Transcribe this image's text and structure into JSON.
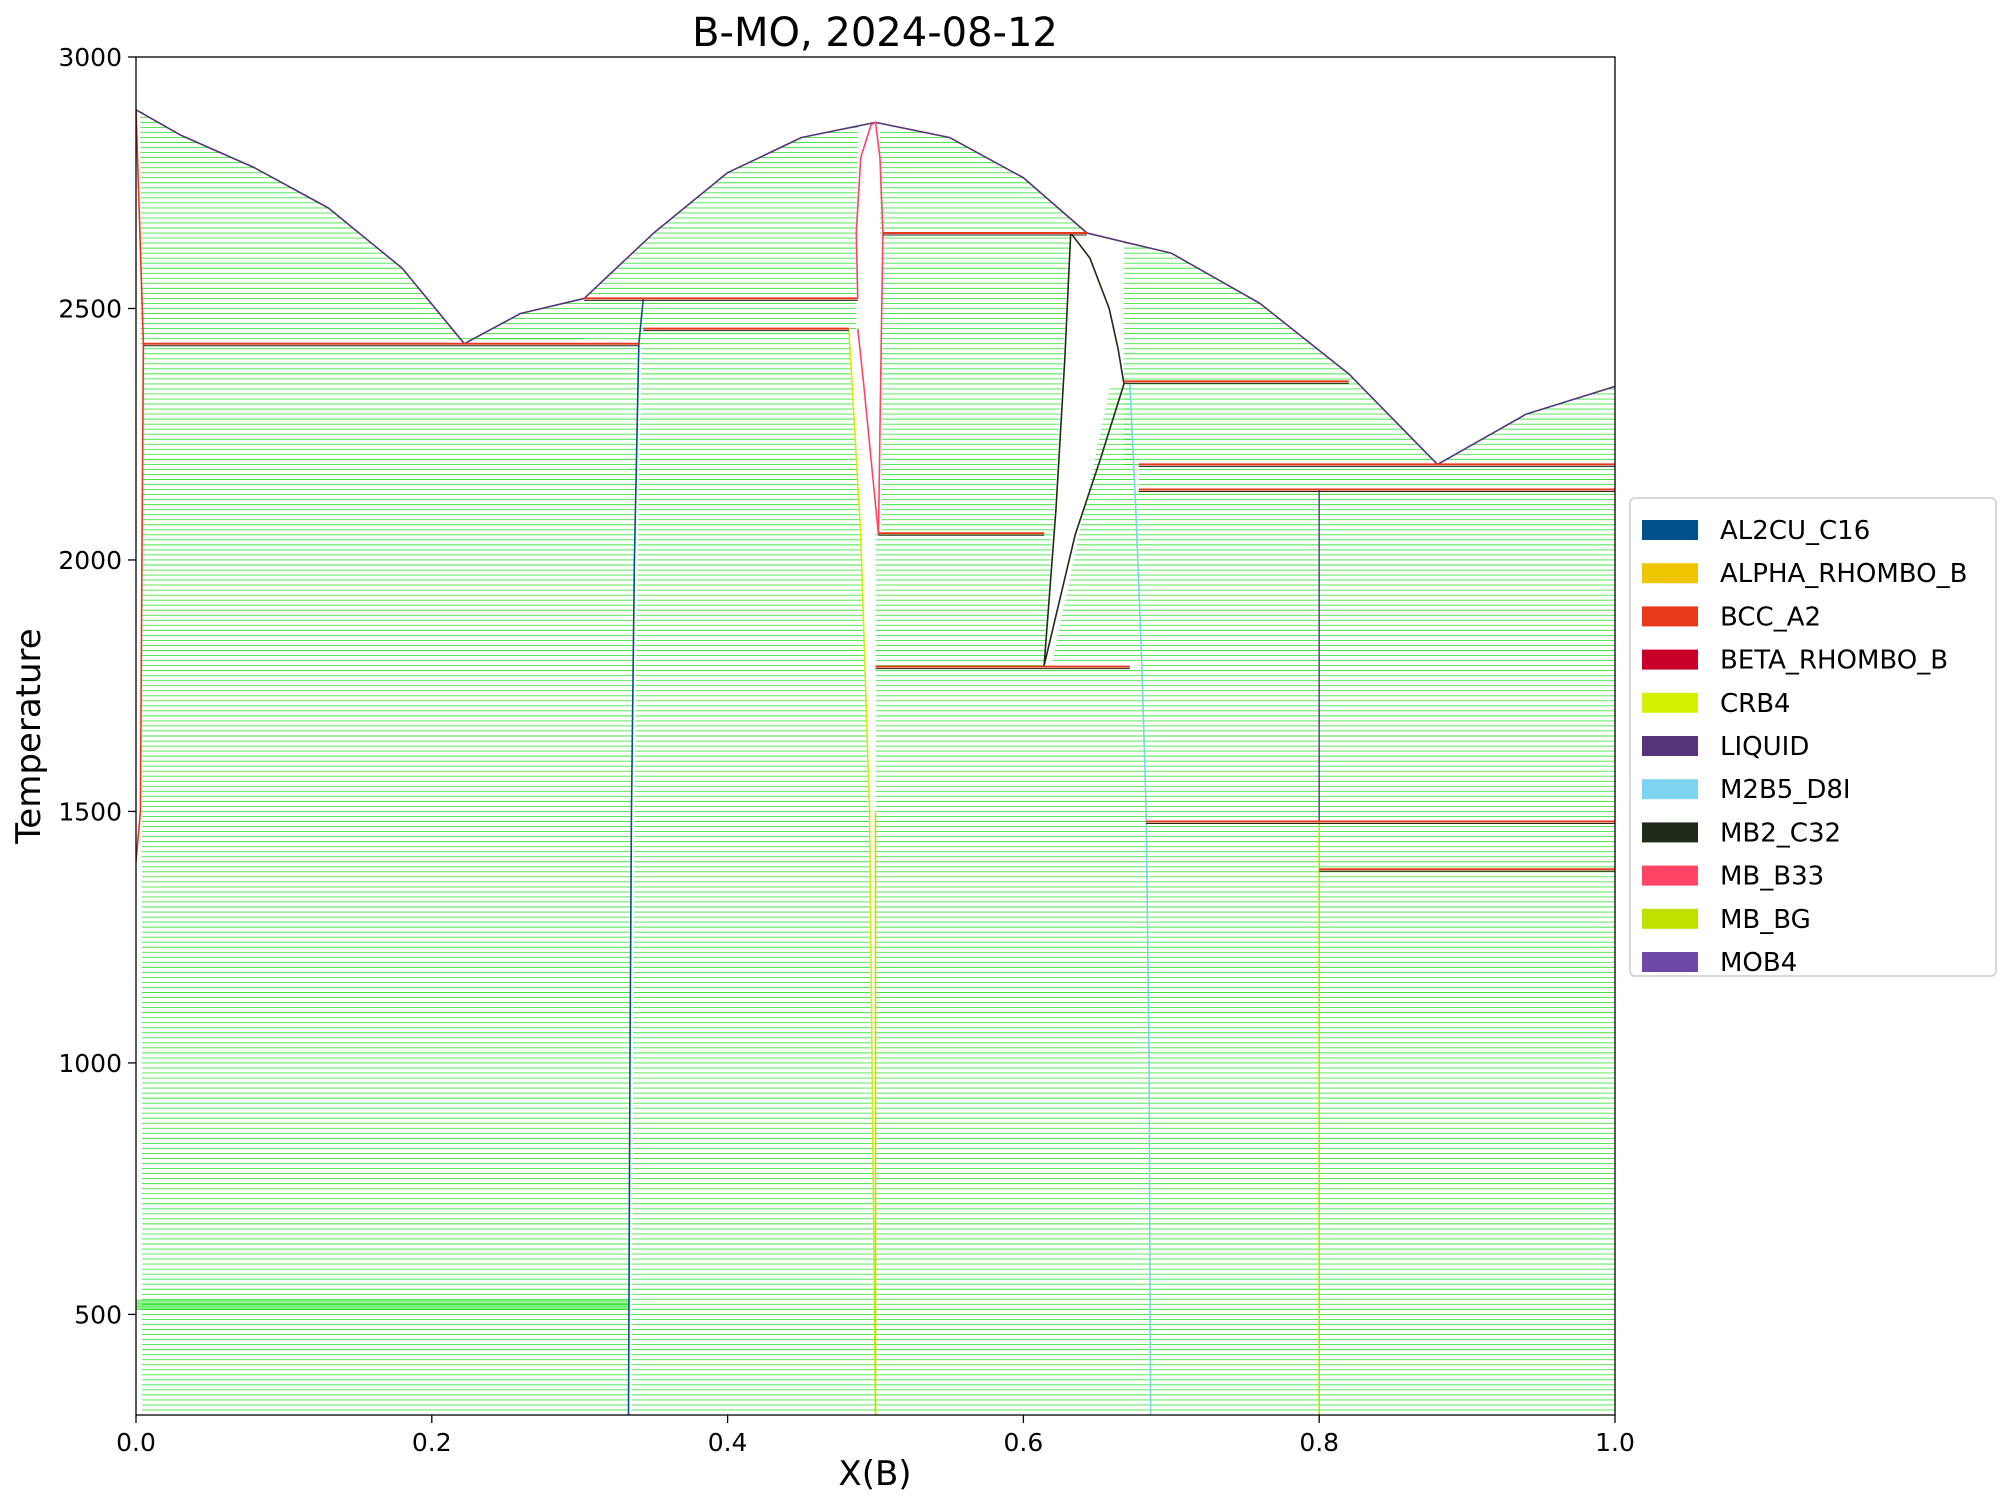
{
  "chart_data": {
    "type": "line",
    "title": "B-MO, 2024-08-12",
    "xlabel": "X(B)",
    "ylabel": "Temperature",
    "xlim": [
      0.0,
      1.0
    ],
    "ylim": [
      300,
      3000
    ],
    "xticks": [
      0.0,
      0.2,
      0.4,
      0.6,
      0.8,
      1.0
    ],
    "xtick_labels": [
      "0.0",
      "0.2",
      "0.4",
      "0.6",
      "0.8",
      "1.0"
    ],
    "yticks": [
      500,
      1000,
      1500,
      2000,
      2500,
      3000
    ],
    "ytick_labels": [
      "500",
      "1000",
      "1500",
      "2000",
      "2500",
      "3000"
    ],
    "grid": false,
    "legend_position": "right",
    "tieline_color": "#00dd00",
    "legend": [
      {
        "name": "AL2CU_C16",
        "color": "#00518c"
      },
      {
        "name": "ALPHA_RHOMBO_B",
        "color": "#f0c600"
      },
      {
        "name": "BCC_A2",
        "color": "#e8381a"
      },
      {
        "name": "BETA_RHOMBO_B",
        "color": "#c8002a"
      },
      {
        "name": "CRB4",
        "color": "#d2f000"
      },
      {
        "name": "LIQUID",
        "color": "#55347a"
      },
      {
        "name": "M2B5_D8I",
        "color": "#7dd3f0"
      },
      {
        "name": "MB2_C32",
        "color": "#202a18"
      },
      {
        "name": "MB_B33",
        "color": "#ff4466"
      },
      {
        "name": "MB_BG",
        "color": "#c0e000"
      },
      {
        "name": "MOB4",
        "color": "#7048a8"
      }
    ],
    "series": [
      {
        "name": "LIQUID",
        "color": "#55347a",
        "x": [
          0.0,
          0.03,
          0.08,
          0.13,
          0.18,
          0.222,
          0.26,
          0.303
        ],
        "y": [
          2895,
          2845,
          2780,
          2700,
          2580,
          2430,
          2490,
          2520
        ]
      },
      {
        "name": "LIQUID",
        "color": "#55347a",
        "x": [
          0.303,
          0.35,
          0.4,
          0.45,
          0.5,
          0.55,
          0.6,
          0.643
        ],
        "y": [
          2520,
          2650,
          2770,
          2840,
          2870,
          2840,
          2760,
          2650
        ]
      },
      {
        "name": "LIQUID",
        "color": "#55347a",
        "x": [
          0.643,
          0.7,
          0.76,
          0.82,
          0.88,
          0.94,
          1.0
        ],
        "y": [
          2650,
          2610,
          2510,
          2370,
          2190,
          2290,
          2345
        ]
      },
      {
        "name": "BCC_A2",
        "color": "#e8381a",
        "x": [
          0.0,
          0.005,
          0.004,
          0.003,
          0.0
        ],
        "y": [
          2895,
          2430,
          2000,
          1500,
          1400
        ]
      },
      {
        "name": "AL2CU_C16",
        "color": "#00518c",
        "x": [
          0.333,
          0.334,
          0.335,
          0.337,
          0.34,
          0.343
        ],
        "y": [
          300,
          1000,
          1500,
          2000,
          2430,
          2520
        ]
      },
      {
        "name": "CRB4",
        "color": "#d2f000",
        "x": [
          0.482,
          0.49,
          0.496,
          0.5
        ],
        "y": [
          2460,
          2050,
          1500,
          300
        ]
      },
      {
        "name": "MB_BG",
        "color": "#c0e000",
        "x": [
          0.5,
          0.5
        ],
        "y": [
          300,
          1500
        ]
      },
      {
        "name": "MB_B33",
        "color": "#ff4466",
        "x": [
          0.488,
          0.487,
          0.49,
          0.497,
          0.5,
          0.503,
          0.505,
          0.504,
          0.502
        ],
        "y": [
          2520,
          2650,
          2800,
          2865,
          2870,
          2800,
          2650,
          2460,
          2050
        ]
      },
      {
        "name": "MB_B33",
        "color": "#ff4466",
        "x": [
          0.488,
          0.492,
          0.497,
          0.502
        ],
        "y": [
          2460,
          2350,
          2200,
          2050
        ]
      },
      {
        "name": "MB2_C32",
        "color": "#202a18",
        "x": [
          0.614,
          0.622,
          0.628,
          0.632
        ],
        "y": [
          1790,
          2100,
          2400,
          2650
        ]
      },
      {
        "name": "MB2_C32",
        "color": "#202a18",
        "x": [
          0.632,
          0.645,
          0.658,
          0.664,
          0.668
        ],
        "y": [
          2650,
          2600,
          2500,
          2420,
          2350
        ]
      },
      {
        "name": "MB2_C32",
        "color": "#202a18",
        "x": [
          0.614,
          0.635,
          0.652,
          0.668
        ],
        "y": [
          1790,
          2050,
          2200,
          2350
        ]
      },
      {
        "name": "M2B5_D8I",
        "color": "#7dd3f0",
        "x": [
          0.672,
          0.676,
          0.68,
          0.683,
          0.685,
          0.686
        ],
        "y": [
          2350,
          2100,
          1800,
          1500,
          1000,
          300
        ]
      },
      {
        "name": "MOB4",
        "color": "#7048a8",
        "x": [
          0.8,
          0.8
        ],
        "y": [
          1480,
          2140
        ]
      },
      {
        "name": "MB_BG",
        "color": "#c0e000",
        "x": [
          0.8,
          0.8
        ],
        "y": [
          300,
          1480
        ]
      }
    ],
    "invariants": [
      {
        "x1": 0.005,
        "x2": 0.34,
        "y": 2430
      },
      {
        "x1": 0.303,
        "x2": 0.488,
        "y": 2520
      },
      {
        "x1": 0.343,
        "x2": 0.482,
        "y": 2460
      },
      {
        "x1": 0.505,
        "x2": 0.643,
        "y": 2650
      },
      {
        "x1": 0.502,
        "x2": 0.614,
        "y": 2053
      },
      {
        "x1": 0.5,
        "x2": 0.672,
        "y": 1788
      },
      {
        "x1": 0.668,
        "x2": 0.82,
        "y": 2355
      },
      {
        "x1": 0.678,
        "x2": 1.0,
        "y": 2190
      },
      {
        "x1": 0.678,
        "x2": 1.0,
        "y": 2140
      },
      {
        "x1": 0.683,
        "x2": 1.0,
        "y": 1480
      },
      {
        "x1": 0.8,
        "x2": 1.0,
        "y": 1385
      }
    ]
  }
}
